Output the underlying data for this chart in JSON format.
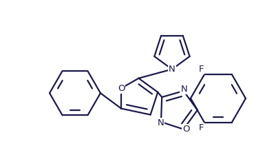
{
  "bg_color": "#ffffff",
  "line_color": "#1a1a4a",
  "line_width": 1.6,
  "font_size": 9.5,
  "figsize": [
    4.02,
    2.41
  ],
  "dpi": 100,
  "xlim": [
    0,
    402
  ],
  "ylim": [
    0,
    241
  ]
}
